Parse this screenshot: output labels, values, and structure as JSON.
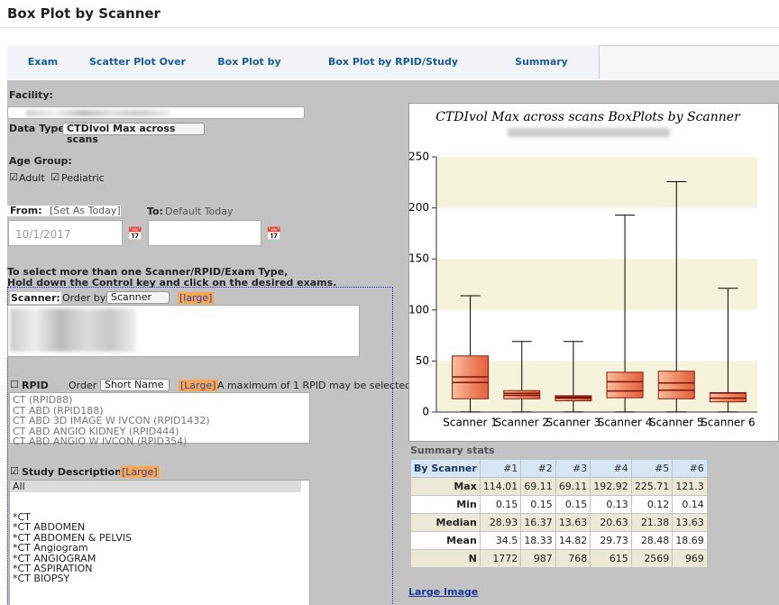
{
  "header": {
    "title": "Box Plot by Scanner"
  },
  "tabs": [
    "Exam Search",
    "Scatter Plot Over Time",
    "Box Plot by Scanner",
    "Box Plot by RPID/Study Description",
    "Summary Comparison"
  ],
  "form": {
    "facility_label": "Facility:",
    "data_type_label": "Data Type:",
    "data_type": "CTDIvol Max across scans",
    "age_group_label": "Age Group:",
    "age_options": [
      "Adult",
      "Pediatric"
    ],
    "from_label": "From:",
    "set_today": "[Set As Today]",
    "from_date": "10/1/2017",
    "to_label": "To:",
    "to_placeholder": "Default Today",
    "instructions": [
      "To select more than one Scanner/RPID/Exam Type,",
      "Hold down the Control key and click on the desired exams."
    ],
    "scanner": {
      "label": "Scanner:",
      "order_label": "Order by:",
      "order": "Scanner",
      "large": "[large]"
    },
    "rpid": {
      "label": "RPID",
      "order_label": "Order by:",
      "order": "Short Name",
      "large": "[Large]",
      "note": "A maximum of 1 RPID may be selected",
      "options": [
        "CT (RPID88)",
        "CT ABD (RPID188)",
        "CT ABD 3D IMAGE W IVCON (RPID1432)",
        "CT ABD ANGIO KIDNEY (RPID444)",
        "CT ABD ANGIO W IVCON (RPID354)"
      ]
    },
    "study": {
      "label": "Study Description:",
      "large": "[Large]",
      "options": [
        "All",
        "*CT",
        "*CT ABDOMEN",
        "*CT ABDOMEN & PELVIS",
        "*CT Angiogram",
        "*CT ANGIOGRAM",
        "*CT ASPIRATION",
        "*CT BIOPSY"
      ]
    }
  },
  "chart": {
    "type": "boxplot",
    "title": "CTDIvol Max across scans BoxPlots by Scanner",
    "categories": [
      "Scanner 1",
      "Scanner 2",
      "Scanner 3",
      "Scanner 4",
      "Scanner 5",
      "Scanner 6"
    ],
    "q1": [
      13,
      13,
      11,
      14,
      13,
      10
    ],
    "q3": [
      55,
      21,
      16,
      39,
      40,
      19
    ],
    "ylim": [
      0,
      250
    ],
    "yticks": [
      0,
      50,
      100,
      150,
      200,
      250
    ],
    "box_color": "#f08a66",
    "band_color": "#f5f3dc"
  },
  "summary": {
    "title": "Summary stats",
    "header": [
      "By Scanner",
      "#1",
      "#2",
      "#3",
      "#4",
      "#5",
      "#6"
    ],
    "rows": [
      [
        "Max",
        114.01,
        69.11,
        69.11,
        192.92,
        225.71,
        121.3
      ],
      [
        "Min",
        0.15,
        0.15,
        0.15,
        0.13,
        0.12,
        0.14
      ],
      [
        "Median",
        28.93,
        16.37,
        13.63,
        20.63,
        21.38,
        13.63
      ],
      [
        "Mean",
        34.5,
        18.33,
        14.82,
        29.73,
        28.48,
        18.69
      ],
      [
        "N",
        1772,
        987,
        768,
        615,
        2569,
        969
      ]
    ]
  },
  "links": {
    "large_image": "Large Image"
  }
}
